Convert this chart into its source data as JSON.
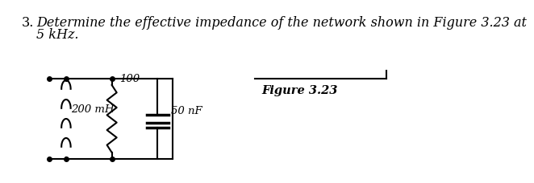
{
  "title_num": "3.",
  "title_text": "Determine the effective impedance of the network shown in Figure 3.23 at\n5 kHz.",
  "figure_label": "Figure 3.23",
  "bg_color": "#ffffff",
  "text_color": "#000000",
  "circuit": {
    "inductor_label": "200 mH",
    "resistor_label": "100",
    "capacitor_label": "50 nF",
    "line_color": "#000000",
    "line_width": 1.5
  },
  "title_fontsize": 11.5,
  "label_fontsize": 9.5
}
